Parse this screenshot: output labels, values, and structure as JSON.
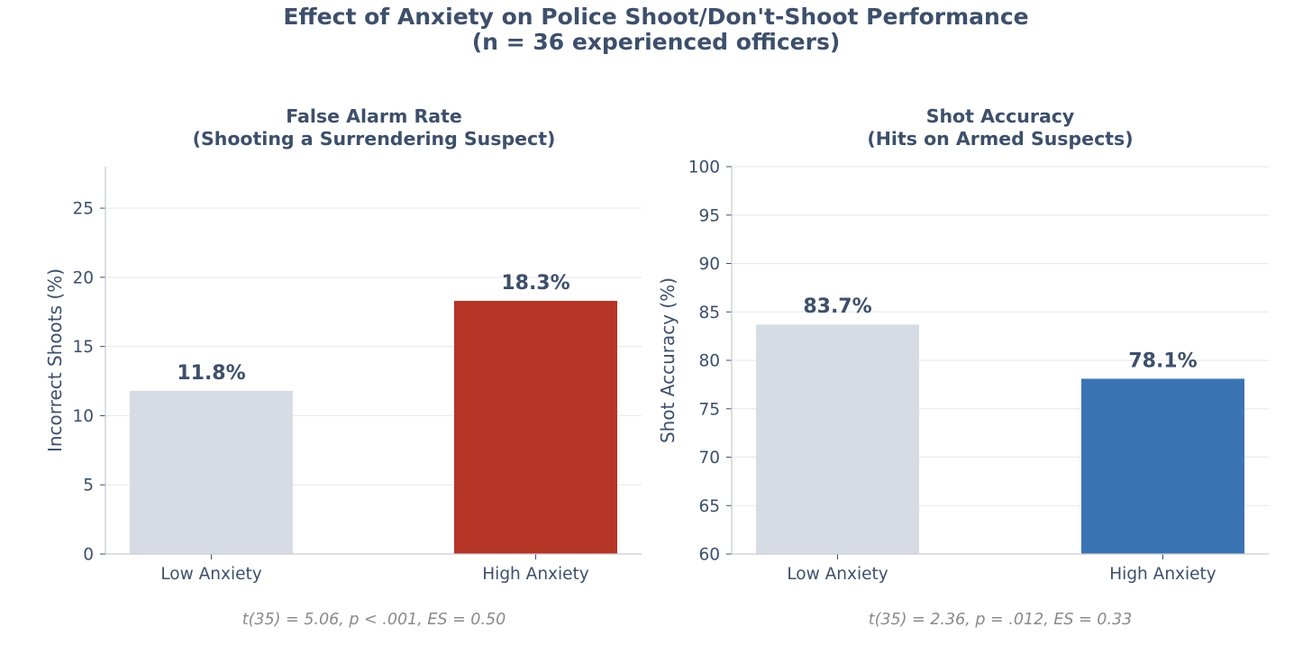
{
  "figure": {
    "title_line1": "Effect of Anxiety on Police Shoot/Don't-Shoot Performance",
    "title_line2": "(n = 36 experienced officers)"
  },
  "chart_data": [
    {
      "type": "bar",
      "title_line1": "False Alarm Rate",
      "title_line2": "(Shooting a Surrendering Suspect)",
      "ylabel": "Incorrect Shoots (%)",
      "xlabel": "",
      "categories": [
        "Low Anxiety",
        "High Anxiety"
      ],
      "values": [
        11.8,
        18.3
      ],
      "value_labels": [
        "11.8%",
        "18.3%"
      ],
      "colors": [
        "#d7dce4",
        "#b53526"
      ],
      "ylim": [
        0,
        28
      ],
      "yticks": [
        0,
        5,
        10,
        15,
        20,
        25
      ],
      "grid": true,
      "stat_text": "t(35) = 5.06, p < .001, ES = 0.50"
    },
    {
      "type": "bar",
      "title_line1": "Shot Accuracy",
      "title_line2": "(Hits on Armed Suspects)",
      "ylabel": "Shot Accuracy (%)",
      "xlabel": "",
      "categories": [
        "Low Anxiety",
        "High Anxiety"
      ],
      "values": [
        83.7,
        78.1
      ],
      "value_labels": [
        "83.7%",
        "78.1%"
      ],
      "colors": [
        "#d7dce4",
        "#3b74b5"
      ],
      "ylim": [
        60,
        100
      ],
      "yticks": [
        60,
        65,
        70,
        75,
        80,
        85,
        90,
        95,
        100
      ],
      "grid": true,
      "stat_text": "t(35) = 2.36, p = .012, ES = 0.33"
    }
  ]
}
